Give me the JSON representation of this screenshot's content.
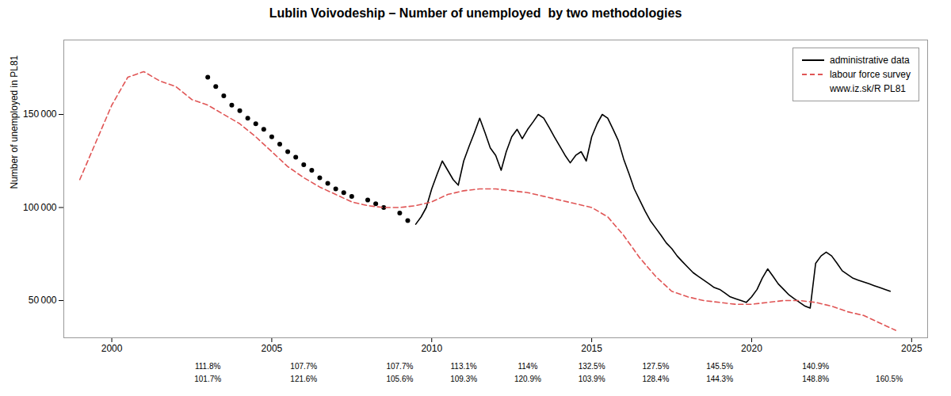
{
  "chart_data": {
    "type": "line",
    "title": "Lublin Voivodeship – Number of unemployed  by two methodologies",
    "ylabel": "Number of unemployed in PL81",
    "xlim": [
      1998.5,
      2025.5
    ],
    "xticks": [
      2000,
      2005,
      2010,
      2015,
      2020,
      2025
    ],
    "ylim": [
      30000,
      190000
    ],
    "yticks": [
      {
        "value": 50000,
        "label": "50 000"
      },
      {
        "value": 100000,
        "label": "100 000"
      },
      {
        "value": 150000,
        "label": "150 000"
      }
    ],
    "grid": false,
    "legend": "upper right",
    "legend_note": "www.iz.sk/R PL81",
    "annotations": [
      {
        "x": 2003,
        "top": "111.8%",
        "bottom": "101.7%"
      },
      {
        "x": 2006,
        "top": "107.7%",
        "bottom": "121.6%"
      },
      {
        "x": 2009,
        "top": "107.7%",
        "bottom": "105.6%"
      },
      {
        "x": 2011,
        "top": "113.1%",
        "bottom": "109.3%"
      },
      {
        "x": 2013,
        "top": "114%",
        "bottom": "120.9%"
      },
      {
        "x": 2015,
        "top": "132.5%",
        "bottom": "103.9%"
      },
      {
        "x": 2017,
        "top": "127.5%",
        "bottom": "128.4%"
      },
      {
        "x": 2019,
        "top": "145.5%",
        "bottom": "144.3%"
      },
      {
        "x": 2022,
        "top": "140.9%",
        "bottom": "148.8%"
      },
      {
        "x": 2024.3,
        "bottom": "160.5%"
      }
    ],
    "series": [
      {
        "name": "administrative data",
        "type": "scatter",
        "marker": "o",
        "color": "#000000",
        "x": [
          2003.0,
          2003.25,
          2003.5,
          2003.75,
          2004.0,
          2004.25,
          2004.5,
          2004.75,
          2005.0,
          2005.25,
          2005.5,
          2005.75,
          2006.0,
          2006.25,
          2006.5,
          2006.75,
          2007.0,
          2007.25,
          2007.5,
          2008.0,
          2008.25,
          2008.5,
          2009.0,
          2009.25
        ],
        "values": [
          170000,
          165000,
          160000,
          155000,
          152000,
          148000,
          145000,
          142000,
          138000,
          134000,
          130000,
          127000,
          123000,
          120000,
          116000,
          113000,
          110000,
          108000,
          106000,
          104000,
          102000,
          100000,
          97000,
          93000
        ]
      },
      {
        "name": "administrative data",
        "type": "line",
        "line_style": "solid",
        "color": "#000000",
        "x": [
          2009.5,
          2009.67,
          2009.83,
          2010.0,
          2010.17,
          2010.33,
          2010.5,
          2010.67,
          2010.83,
          2011.0,
          2011.17,
          2011.33,
          2011.5,
          2011.67,
          2011.83,
          2012.0,
          2012.17,
          2012.33,
          2012.5,
          2012.67,
          2012.83,
          2013.0,
          2013.17,
          2013.33,
          2013.5,
          2013.67,
          2013.83,
          2014.0,
          2014.17,
          2014.33,
          2014.5,
          2014.67,
          2014.83,
          2015.0,
          2015.17,
          2015.33,
          2015.5,
          2015.67,
          2015.83,
          2016.0,
          2016.17,
          2016.33,
          2016.5,
          2016.67,
          2016.83,
          2017.0,
          2017.17,
          2017.33,
          2017.5,
          2017.67,
          2017.83,
          2018.0,
          2018.17,
          2018.33,
          2018.5,
          2018.67,
          2018.83,
          2019.0,
          2019.17,
          2019.33,
          2019.5,
          2019.67,
          2019.83,
          2020.0,
          2020.17,
          2020.33,
          2020.5,
          2020.67,
          2020.83,
          2021.0,
          2021.17,
          2021.33,
          2021.5,
          2021.67,
          2021.83,
          2022.0,
          2022.17,
          2022.33,
          2022.5,
          2022.67,
          2022.83,
          2023.0,
          2023.17,
          2023.33,
          2023.5,
          2023.67,
          2023.83,
          2024.0,
          2024.17,
          2024.33
        ],
        "values": [
          91000,
          95000,
          100000,
          110000,
          118000,
          125000,
          120000,
          115000,
          112000,
          125000,
          133000,
          140000,
          148000,
          140000,
          132000,
          128000,
          120000,
          130000,
          138000,
          142000,
          137000,
          142000,
          146000,
          150000,
          148000,
          143000,
          138000,
          133000,
          128000,
          124000,
          128000,
          130000,
          125000,
          138000,
          145000,
          150000,
          148000,
          142000,
          136000,
          126000,
          118000,
          110000,
          104000,
          98000,
          93000,
          89000,
          85000,
          81000,
          78000,
          74000,
          71000,
          68000,
          65000,
          63000,
          61000,
          59000,
          57000,
          56000,
          54000,
          52000,
          51000,
          50000,
          49000,
          52000,
          56000,
          62000,
          67000,
          63000,
          59000,
          56000,
          53000,
          51000,
          49000,
          47000,
          46000,
          70000,
          74000,
          76000,
          74000,
          70000,
          66000,
          64000,
          62000,
          61000,
          60000,
          59000,
          58000,
          57000,
          56000,
          55000
        ]
      },
      {
        "name": "labour force survey",
        "type": "line",
        "line_style": "dashed",
        "color": "#e05555",
        "x": [
          1999.0,
          1999.5,
          2000.0,
          2000.5,
          2001.0,
          2001.5,
          2002.0,
          2002.5,
          2003.0,
          2003.5,
          2004.0,
          2004.5,
          2005.0,
          2005.5,
          2006.0,
          2006.5,
          2007.0,
          2007.5,
          2008.0,
          2008.5,
          2009.0,
          2009.5,
          2010.0,
          2010.5,
          2011.0,
          2011.5,
          2012.0,
          2012.5,
          2013.0,
          2013.5,
          2014.0,
          2014.5,
          2015.0,
          2015.5,
          2016.0,
          2016.5,
          2017.0,
          2017.5,
          2018.0,
          2018.5,
          2019.0,
          2019.5,
          2020.0,
          2020.5,
          2021.0,
          2021.5,
          2022.0,
          2022.5,
          2023.0,
          2023.5,
          2024.0,
          2024.5
        ],
        "values": [
          115000,
          135000,
          155000,
          170000,
          173000,
          168000,
          165000,
          158000,
          155000,
          150000,
          145000,
          138000,
          130000,
          122000,
          116000,
          111000,
          107000,
          103000,
          101000,
          100000,
          100000,
          101000,
          103000,
          107000,
          109000,
          110000,
          110000,
          109000,
          108000,
          106000,
          104000,
          102000,
          100000,
          95000,
          85000,
          73000,
          63000,
          55000,
          52000,
          50000,
          49000,
          48000,
          48000,
          49000,
          50000,
          50000,
          49000,
          47000,
          44000,
          42000,
          38000,
          34000
        ]
      }
    ]
  }
}
